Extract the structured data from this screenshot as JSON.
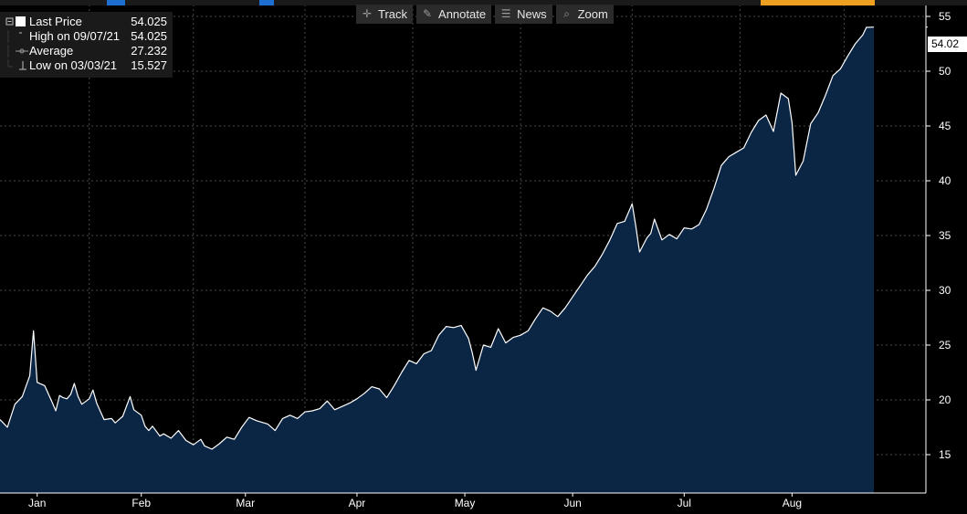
{
  "toolbar": {
    "buttons": [
      {
        "label": "Track",
        "icon": "crosshair-icon"
      },
      {
        "label": "Annotate",
        "icon": "pencil-icon"
      },
      {
        "label": "News",
        "icon": "news-icon"
      },
      {
        "label": "Zoom",
        "icon": "zoom-icon"
      }
    ]
  },
  "legend": {
    "last_price": {
      "label": "Last Price",
      "value": "54.025"
    },
    "high": {
      "label": "High on 09/07/21",
      "value": "54.025"
    },
    "average": {
      "label": "Average",
      "value": "27.232"
    },
    "low": {
      "label": "Low on 03/03/21",
      "value": "15.527"
    }
  },
  "last_value_tag": "54.02",
  "colors": {
    "background": "#000000",
    "area_fill": "#0b2545",
    "line": "#ffffff",
    "grid": "#4a4a4a",
    "axis_text": "#ffffff",
    "accent": "#1f6fd1",
    "orange": "#f0a020"
  },
  "chart_data": {
    "type": "area",
    "title": "",
    "xlabel": "",
    "ylabel": "",
    "ylim": [
      11.5,
      56.5
    ],
    "yticks": [
      15,
      20,
      25,
      30,
      35,
      40,
      45,
      50,
      55
    ],
    "xlim": [
      0,
      249
    ],
    "x_tick_labels": [
      "Jan",
      "Feb",
      "Mar",
      "Apr",
      "May",
      "Jun",
      "Jul",
      "Aug"
    ],
    "x_tick_positions": [
      10,
      38,
      66,
      96,
      125,
      154,
      184,
      213
    ],
    "grid": true,
    "y_axis_side": "right",
    "series": [
      {
        "name": "Last Price",
        "x": [
          0,
          2,
          4,
          6,
          8,
          9,
          10,
          12,
          14,
          15,
          16,
          17,
          18,
          19,
          20,
          21,
          22,
          24,
          25,
          26,
          28,
          30,
          31,
          32,
          33,
          35,
          36,
          38,
          39,
          40,
          41,
          43,
          44,
          46,
          48,
          50,
          52,
          54,
          55,
          57,
          59,
          61,
          63,
          65,
          67,
          69,
          72,
          74,
          76,
          78,
          80,
          82,
          84,
          86,
          88,
          90,
          92,
          94,
          96,
          98,
          100,
          102,
          104,
          106,
          108,
          110,
          112,
          114,
          116,
          118,
          120,
          122,
          124,
          126,
          127,
          128,
          130,
          132,
          134,
          136,
          138,
          140,
          142,
          144,
          146,
          148,
          150,
          152,
          154,
          156,
          158,
          160,
          162,
          164,
          166,
          168,
          170,
          171,
          172,
          174,
          175,
          176,
          178,
          180,
          182,
          184,
          186,
          188,
          190,
          192,
          194,
          196,
          198,
          200,
          202,
          204,
          206,
          208,
          210,
          212,
          213,
          214,
          216,
          218,
          220,
          222,
          224,
          226,
          228,
          230,
          232,
          233,
          235
        ],
        "values": [
          18.2,
          17.5,
          19.6,
          20.3,
          22.2,
          26.3,
          21.6,
          21.3,
          19.8,
          19.0,
          20.4,
          20.2,
          20.1,
          20.5,
          21.5,
          20.3,
          19.6,
          20.1,
          20.9,
          19.7,
          18.2,
          18.3,
          17.9,
          18.2,
          18.5,
          20.3,
          19.1,
          18.6,
          17.6,
          17.2,
          17.6,
          16.7,
          16.9,
          16.5,
          17.2,
          16.3,
          15.9,
          16.4,
          15.8,
          15.5,
          16.0,
          16.6,
          16.4,
          17.5,
          18.4,
          18.1,
          17.8,
          17.2,
          18.3,
          18.6,
          18.3,
          18.9,
          19.0,
          19.2,
          19.9,
          19.1,
          19.4,
          19.7,
          20.1,
          20.6,
          21.2,
          21.0,
          20.2,
          21.3,
          22.5,
          23.6,
          23.3,
          24.2,
          24.5,
          25.9,
          26.7,
          26.6,
          26.8,
          25.6,
          24.3,
          22.7,
          25.0,
          24.8,
          26.5,
          25.2,
          25.7,
          25.9,
          26.3,
          27.4,
          28.4,
          28.1,
          27.6,
          28.4,
          29.4,
          30.4,
          31.4,
          32.2,
          33.3,
          34.6,
          36.1,
          36.3,
          37.9,
          35.8,
          33.5,
          34.8,
          35.2,
          36.5,
          34.6,
          35.1,
          34.7,
          35.7,
          35.6,
          36.0,
          37.4,
          39.3,
          41.4,
          42.2,
          42.6,
          43.0,
          44.4,
          45.5,
          46.0,
          44.5,
          48.0,
          47.5,
          45.3,
          40.5,
          41.8,
          45.2,
          46.2,
          47.8,
          49.6,
          50.2,
          51.4,
          52.5,
          53.3,
          54.0,
          54.025
        ]
      }
    ]
  }
}
